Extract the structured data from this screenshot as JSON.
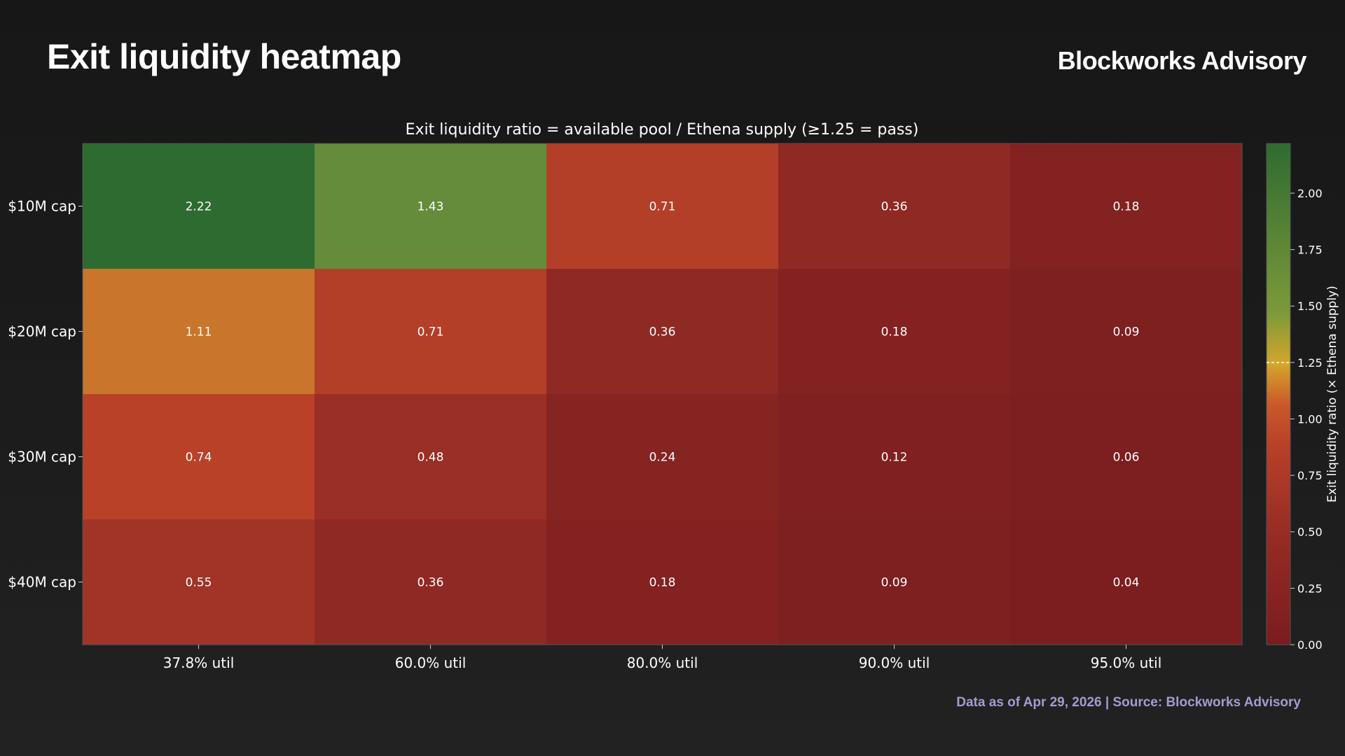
{
  "header": {
    "title": "Exit liquidity heatmap",
    "brand": "Blockworks Advisory"
  },
  "footer": {
    "source": "Data as of Apr 29, 2026 | Source: Blockworks Advisory"
  },
  "colors": {
    "background": "#1b1b1b",
    "text": "#ffffff",
    "source_text": "#a49bd0",
    "scale_low": "#7a1c1f",
    "scale_mid": "#c4522a",
    "scale_threshold": "#d4a62c",
    "scale_high": "#2e6b30"
  },
  "chart_data": {
    "type": "heatmap",
    "title": "Exit liquidity ratio = available pool / Ethena supply (≥1.25 = pass)",
    "x_categories": [
      "37.8% util",
      "60.0% util",
      "80.0% util",
      "90.0% util",
      "95.0% util"
    ],
    "y_categories": [
      "$10M cap",
      "$20M cap",
      "$30M cap",
      "$40M cap"
    ],
    "values": [
      [
        2.22,
        1.43,
        0.71,
        0.36,
        0.18
      ],
      [
        1.11,
        0.71,
        0.36,
        0.18,
        0.09
      ],
      [
        0.74,
        0.48,
        0.24,
        0.12,
        0.06
      ],
      [
        0.55,
        0.36,
        0.18,
        0.09,
        0.04
      ]
    ],
    "value_labels": [
      [
        "2.22",
        "1.43",
        "0.71",
        "0.36",
        "0.18"
      ],
      [
        "1.11",
        "0.71",
        "0.36",
        "0.18",
        "0.09"
      ],
      [
        "0.74",
        "0.48",
        "0.24",
        "0.12",
        "0.06"
      ],
      [
        "0.55",
        "0.36",
        "0.18",
        "0.09",
        "0.04"
      ]
    ],
    "colorbar": {
      "label": "Exit liquidity ratio (× Ethena supply)",
      "range": [
        0,
        2.22
      ],
      "ticks": [
        0,
        0.25,
        0.5,
        0.75,
        1.0,
        1.25,
        1.5,
        1.75,
        2.0
      ],
      "tick_labels": [
        "0.00",
        "0.25",
        "0.50",
        "0.75",
        "1.00",
        "1.25",
        "1.50",
        "1.75",
        "2.00"
      ],
      "threshold": 1.25
    }
  }
}
